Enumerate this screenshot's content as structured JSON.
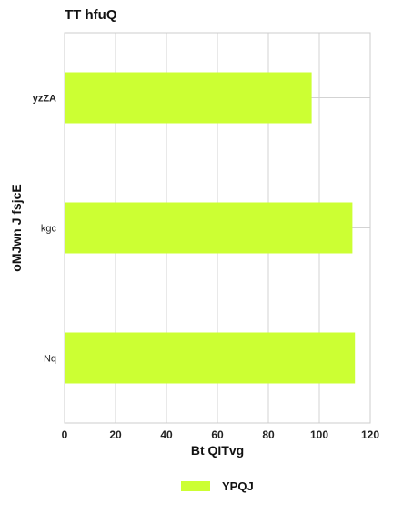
{
  "chart_data": {
    "type": "bar",
    "orientation": "horizontal",
    "title": "TT hfuQ",
    "xlabel": "Bt QITvg",
    "ylabel": "oMJwn J fsjcE",
    "categories": [
      "yzZA",
      "kgc",
      "Nq"
    ],
    "series": [
      {
        "name": "YPQJ",
        "values": [
          97,
          113,
          114
        ],
        "color": "#ccff33"
      }
    ],
    "xlim": [
      0,
      120
    ],
    "xticks": [
      0,
      20,
      40,
      60,
      80,
      100,
      120
    ],
    "grid": true,
    "legend_position": "bottom-center"
  }
}
